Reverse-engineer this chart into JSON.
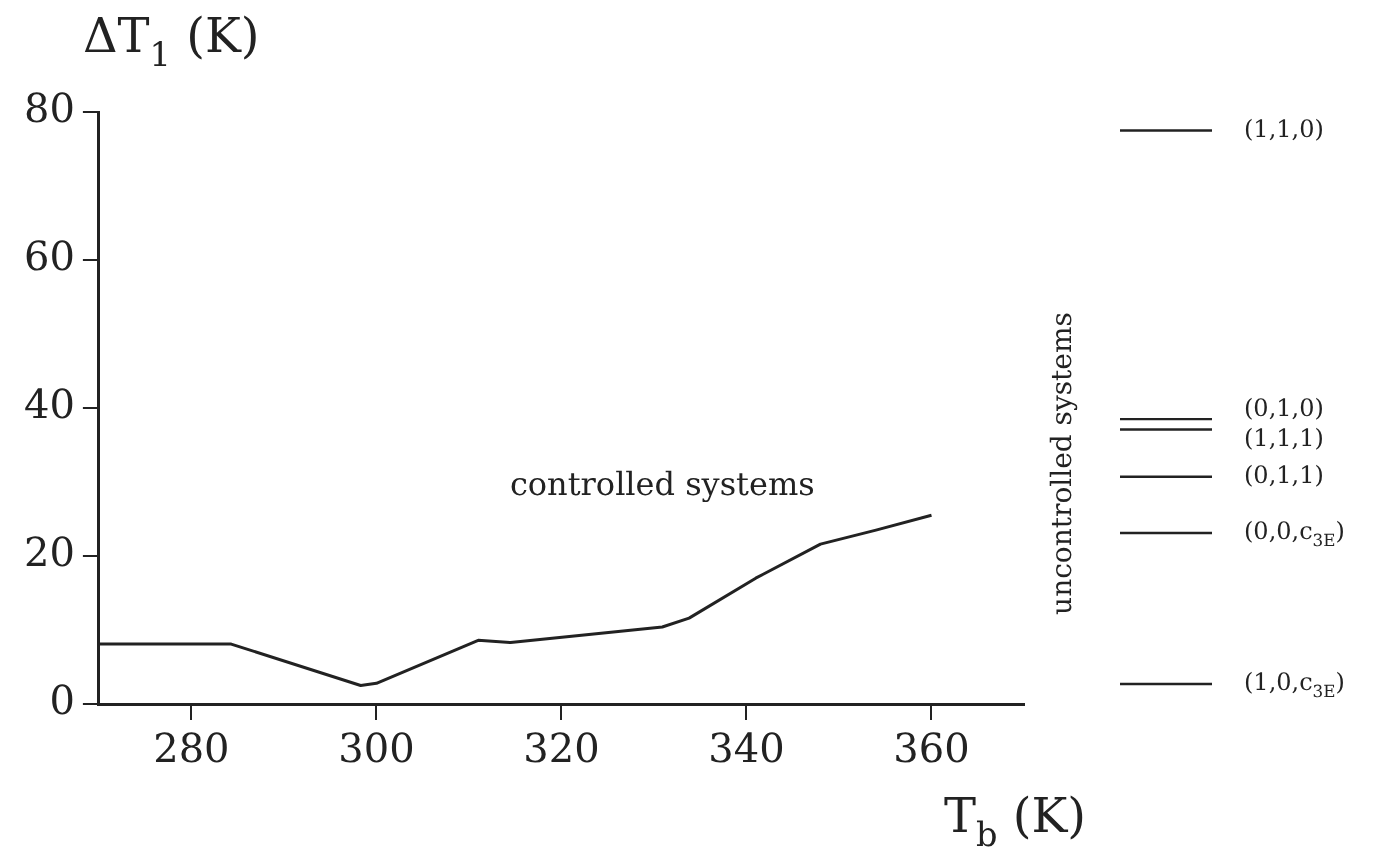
{
  "chart_data": {
    "type": "line",
    "xlabel": "T$_{b}$ (K)",
    "ylabel": "ΔT$_{1}$ (K)",
    "x": [
      270,
      284.3,
      298.3,
      300,
      311,
      314.5,
      330.9,
      333.8,
      341,
      348,
      354,
      360
    ],
    "series": [
      {
        "name": "controlled systems",
        "color": "#222222",
        "values": [
          8.1,
          8.1,
          2.5,
          2.8,
          8.6,
          8.3,
          10.4,
          11.6,
          17,
          21.6,
          23.5,
          25.5
        ]
      }
    ],
    "xlim": [
      270,
      370
    ],
    "xticks": [
      280,
      300,
      320,
      340,
      360
    ],
    "ylim": [
      0,
      80
    ],
    "yticks": [
      0,
      20,
      40,
      60,
      80
    ],
    "grid": false,
    "legend": false,
    "marker": "none",
    "line_style": "solid",
    "ref_lines": [
      {
        "axis": "y",
        "value": 77.5,
        "label": "(1,1,0)"
      },
      {
        "axis": "y",
        "value": 38.5,
        "label": "(0,1,0)"
      },
      {
        "axis": "y",
        "value": 37.1,
        "label": "(1,1,1)"
      },
      {
        "axis": "y",
        "value": 30.7,
        "label": "(0,1,1)"
      },
      {
        "axis": "y",
        "value": 23.1,
        "label": "(0,0,c$_{3E}$)"
      },
      {
        "axis": "y",
        "value": 2.7,
        "label": "(1,0,c$_{3E}$)"
      }
    ],
    "annotations": [
      "uncontrolled systems"
    ]
  }
}
